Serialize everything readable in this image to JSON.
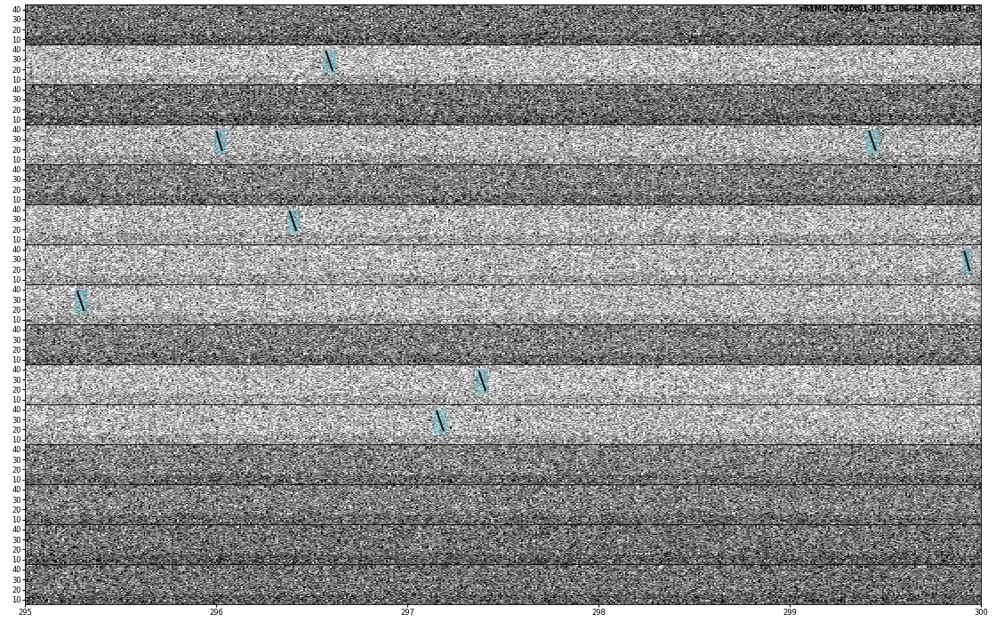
{
  "chart_data": {
    "type": "spectrogram",
    "title": "ch1MPI_2020-01-30_15-06-38_0000193-p4",
    "rows": 15,
    "xlim": [
      295,
      300
    ],
    "xticks": [
      295,
      296,
      297,
      298,
      299,
      300
    ],
    "ylim": [
      5,
      45
    ],
    "yticks": [
      10,
      20,
      30,
      40
    ],
    "detections": [
      {
        "row": 1,
        "start": 296.56,
        "end": 296.62,
        "low": 17,
        "high": 40
      },
      {
        "row": 3,
        "start": 295.99,
        "end": 296.04,
        "low": 17,
        "high": 40
      },
      {
        "row": 3,
        "start": 299.4,
        "end": 299.46,
        "low": 17,
        "high": 40
      },
      {
        "row": 5,
        "start": 296.37,
        "end": 296.43,
        "low": 17,
        "high": 40
      },
      {
        "row": 6,
        "start": 299.9,
        "end": 299.95,
        "low": 17,
        "high": 40
      },
      {
        "row": 7,
        "start": 295.26,
        "end": 295.32,
        "low": 17,
        "high": 40
      },
      {
        "row": 9,
        "start": 297.36,
        "end": 297.42,
        "low": 17,
        "high": 40
      },
      {
        "row": 10,
        "start": 297.14,
        "end": 297.2,
        "low": 17,
        "high": 40
      }
    ]
  }
}
